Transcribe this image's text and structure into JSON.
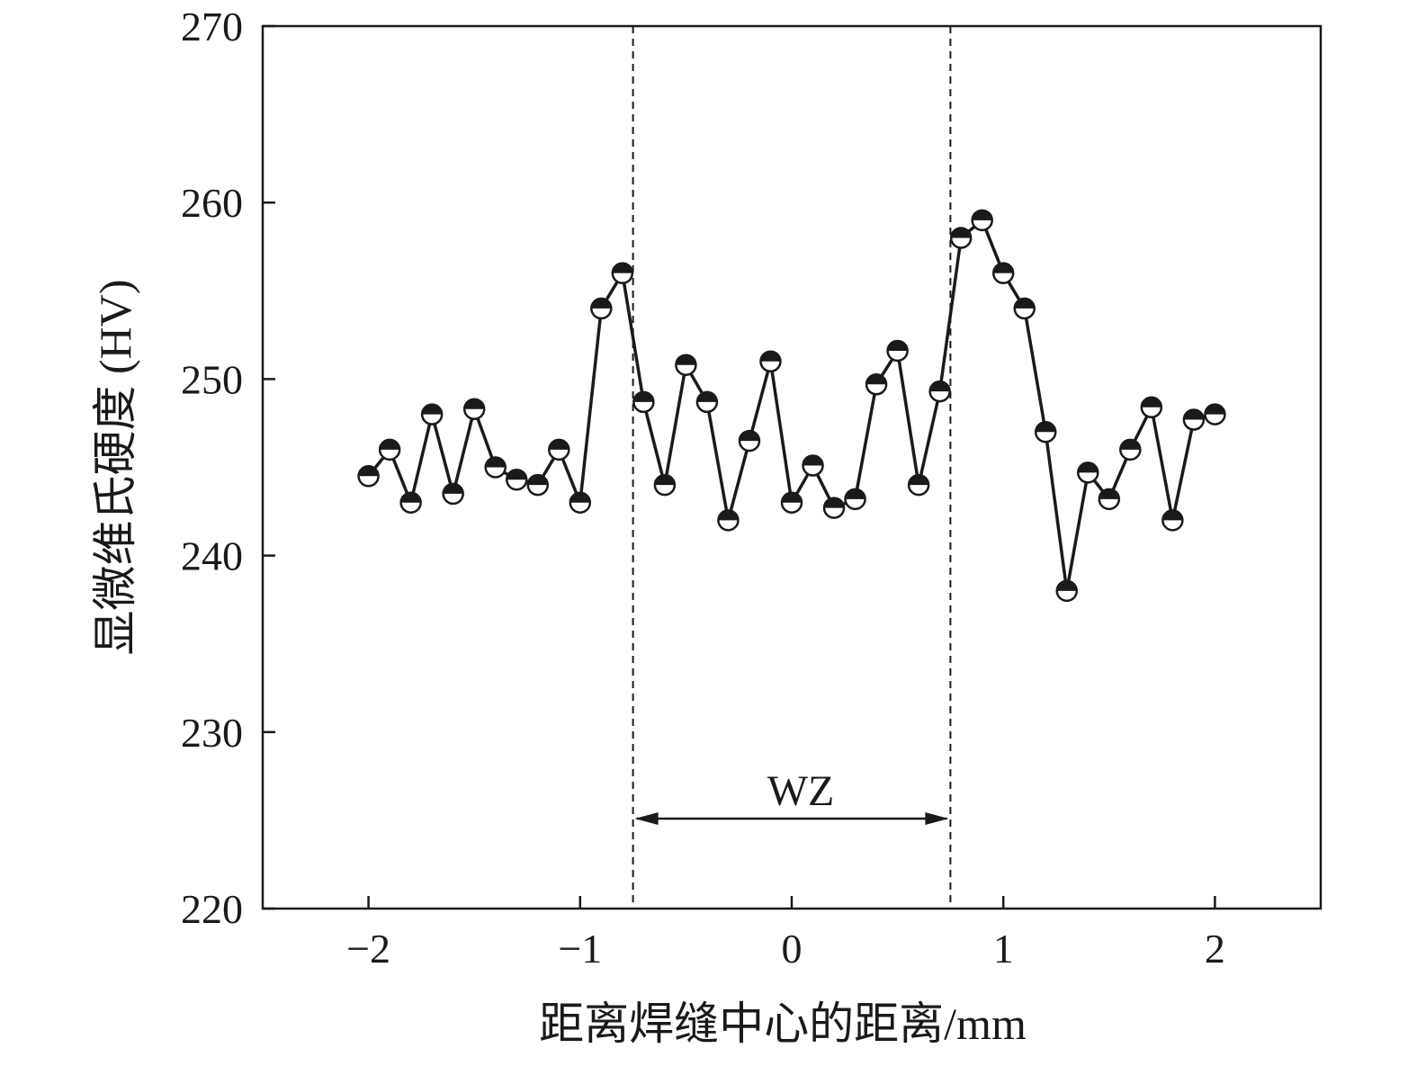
{
  "chart_data": {
    "type": "line",
    "xlabel": "距离焊缝中心的距离/mm",
    "ylabel": "显微维氏硬度 (HV)",
    "xlim": [
      -2.5,
      2.5
    ],
    "ylim": [
      220,
      270
    ],
    "x_ticks": [
      -2,
      -1,
      0,
      1,
      2
    ],
    "x_tick_labels": [
      "−2",
      "−1",
      "0",
      "1",
      "2"
    ],
    "y_ticks": [
      220,
      230,
      240,
      250,
      260,
      270
    ],
    "y_tick_labels": [
      "220",
      "230",
      "240",
      "250",
      "260",
      "270"
    ],
    "grid": false,
    "legend": "none",
    "marker": "half-filled circle",
    "region": {
      "label": "WZ",
      "x_start": -0.75,
      "x_end": 0.75
    },
    "series": [
      {
        "x": [
          -2.0,
          -1.9,
          -1.8,
          -1.7,
          -1.6,
          -1.5,
          -1.4,
          -1.3,
          -1.2,
          -1.1,
          -1.0,
          -0.9,
          -0.8,
          -0.7,
          -0.6,
          -0.5,
          -0.4,
          -0.3,
          -0.2,
          -0.1,
          0.0,
          0.1,
          0.2,
          0.3,
          0.4,
          0.5,
          0.6,
          0.7,
          0.8,
          0.9,
          1.0,
          1.1,
          1.2,
          1.3,
          1.4,
          1.5,
          1.6,
          1.7,
          1.8,
          1.9,
          2.0
        ],
        "y": [
          244.5,
          246,
          243,
          248,
          243.5,
          248.3,
          245,
          244.3,
          244,
          246,
          243,
          254,
          256,
          248.7,
          244,
          250.8,
          248.7,
          242,
          246.5,
          251,
          243,
          245.1,
          242.7,
          243.2,
          249.7,
          251.6,
          244,
          249.3,
          258,
          259,
          256,
          254,
          247,
          238,
          244.7,
          243.2,
          246,
          248.4,
          242,
          247.7,
          248
        ]
      }
    ]
  }
}
